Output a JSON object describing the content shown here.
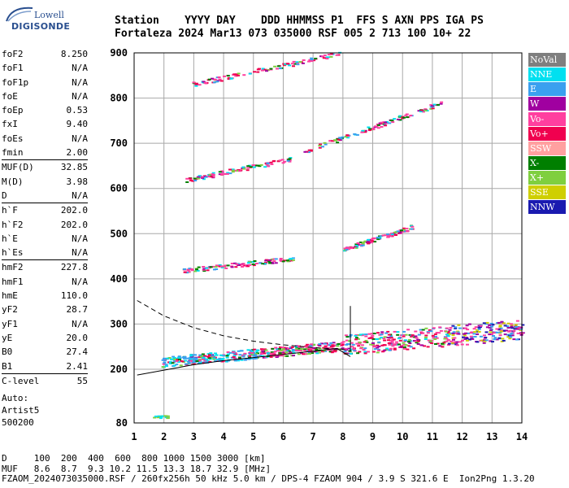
{
  "logo": {
    "line1": "Lowell",
    "line2": "DIGISONDE"
  },
  "header": {
    "line1": "Station    YYYY DAY    DDD HHMMSS P1  FFS S AXN PPS IGA PS",
    "line2": "Fortaleza 2024 Mar13 073 035000 RSF 005 2 713 100 10+ 22"
  },
  "parameters": [
    {
      "name": "foF2",
      "value": "8.250"
    },
    {
      "name": "foF1",
      "value": "N/A"
    },
    {
      "name": "foF1p",
      "value": "N/A"
    },
    {
      "name": "foE",
      "value": "N/A"
    },
    {
      "name": "foEp",
      "value": "0.53"
    },
    {
      "name": "fxI",
      "value": "9.40"
    },
    {
      "name": "foEs",
      "value": "N/A"
    },
    {
      "name": "fmin",
      "value": "2.00"
    },
    {
      "sep": true
    },
    {
      "name": "MUF(D)",
      "value": "32.85"
    },
    {
      "name": "M(D)",
      "value": "3.98"
    },
    {
      "name": "D",
      "value": "N/A"
    },
    {
      "sep": true
    },
    {
      "name": "h`F",
      "value": "202.0"
    },
    {
      "name": "h`F2",
      "value": "202.0"
    },
    {
      "name": "h`E",
      "value": "N/A"
    },
    {
      "name": "h`Es",
      "value": "N/A"
    },
    {
      "sep": true
    },
    {
      "name": "hmF2",
      "value": "227.8"
    },
    {
      "name": "hmF1",
      "value": "N/A"
    },
    {
      "name": "hmE",
      "value": "110.0"
    },
    {
      "name": "yF2",
      "value": "28.7"
    },
    {
      "name": "yF1",
      "value": "N/A"
    },
    {
      "name": "yE",
      "value": "20.0"
    },
    {
      "name": "B0",
      "value": "27.4"
    },
    {
      "name": "B1",
      "value": "2.41"
    },
    {
      "sep": true
    },
    {
      "name": "C-level",
      "value": "55"
    }
  ],
  "auto": {
    "line1": "Auto:",
    "line2": "Artist5",
    "line3": "500200"
  },
  "legend": [
    {
      "label": "NoVal",
      "color": "#7f7f7f"
    },
    {
      "label": "NNE",
      "color": "#00e0f0"
    },
    {
      "label": "E",
      "color": "#3aa0ef"
    },
    {
      "label": "W",
      "color": "#a000a0"
    },
    {
      "label": "Vo-",
      "color": "#ff3f9f"
    },
    {
      "label": "Vo+",
      "color": "#f0004f"
    },
    {
      "label": "SSW",
      "color": "#ffa0a0"
    },
    {
      "label": "X-",
      "color": "#007f00"
    },
    {
      "label": "X+",
      "color": "#7fcf3f"
    },
    {
      "label": "SSE",
      "color": "#cfcf00"
    },
    {
      "label": "NNW",
      "color": "#1a1ab0"
    }
  ],
  "footer": {
    "line1": "D     100  200  400  600  800 1000 1500 3000 [km]",
    "line2": "MUF   8.6  8.7  9.3 10.2 11.5 13.3 18.7 32.9 [MHz]",
    "line3": "FZAOM_2024073035000.RSF / 260fx256h 50 kHz 5.0 km / DPS-4 FZAOM 904 / 3.9 S 321.6 E  Ion2Png 1.3.20"
  },
  "chart_data": {
    "type": "scatter",
    "x_unit": "MHz",
    "y_unit": "km",
    "xlim": [
      1,
      14
    ],
    "ylim": [
      80,
      900
    ],
    "x_ticks": [
      1,
      2,
      3,
      4,
      5,
      6,
      7,
      8,
      9,
      10,
      11,
      12,
      13,
      14
    ],
    "y_ticks": [
      80,
      200,
      300,
      400,
      500,
      600,
      700,
      800,
      900
    ],
    "grid": true,
    "legend_position": "right",
    "traces": [
      {
        "name": "F2 first hop",
        "x_start": 1.9,
        "x_end": 14.0,
        "h_start": 215,
        "h_end": 285
      },
      {
        "name": "F2 second hop",
        "x_start": 2.6,
        "x_end": 6.3,
        "h_start": 418,
        "h_end": 445
      },
      {
        "name": "F2 second hop high",
        "x_start": 8.0,
        "x_end": 10.3,
        "h_start": 465,
        "h_end": 515
      },
      {
        "name": "F2 third hop",
        "x_start": 2.7,
        "x_end": 6.2,
        "h_start": 618,
        "h_end": 665
      },
      {
        "name": "F2 third hop high",
        "x_start": 6.6,
        "x_end": 11.3,
        "h_start": 680,
        "h_end": 790
      },
      {
        "name": "F2 fourth hop",
        "x_start": 2.9,
        "x_end": 7.9,
        "h_start": 830,
        "h_end": 898
      }
    ],
    "profile_solid": [
      [
        1.1,
        187
      ],
      [
        2,
        198
      ],
      [
        3,
        210
      ],
      [
        4,
        219
      ],
      [
        5,
        226
      ],
      [
        6,
        233
      ],
      [
        7,
        240
      ],
      [
        7.8,
        246
      ],
      [
        8.25,
        228
      ]
    ],
    "profile_dashed": [
      [
        1.1,
        352
      ],
      [
        2,
        318
      ],
      [
        3,
        292
      ],
      [
        4,
        274
      ],
      [
        5,
        262
      ],
      [
        6,
        254
      ],
      [
        7,
        248
      ],
      [
        8,
        244
      ],
      [
        8.25,
        240
      ]
    ],
    "marker_foF2": {
      "x": 8.25,
      "h_from": 240,
      "h_to": 340
    }
  }
}
